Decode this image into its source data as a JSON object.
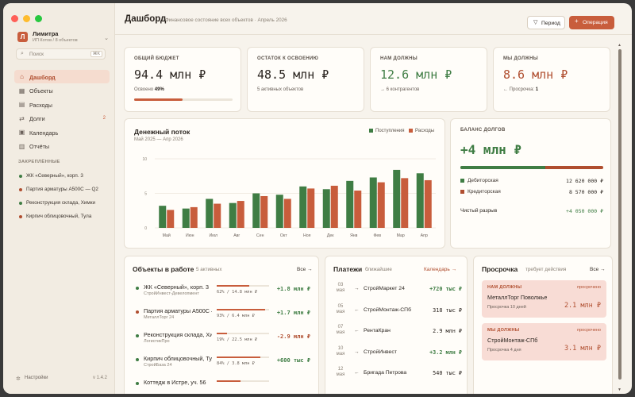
{
  "sidebar": {
    "org_logo": "Л",
    "org_name": "Лимитра",
    "org_sub": "ИП Котов / 8 объектов",
    "search_placeholder": "Поиск",
    "search_kbd": "⌘K",
    "nav": [
      {
        "label": "Дашборд",
        "icon": "⌂",
        "icon_name": "home-icon",
        "active": true
      },
      {
        "label": "Объекты",
        "icon": "▦",
        "icon_name": "building-icon"
      },
      {
        "label": "Расходы",
        "icon": "▤",
        "icon_name": "receipt-icon"
      },
      {
        "label": "Долги",
        "icon": "⇄",
        "icon_name": "debt-icon",
        "count": "2"
      },
      {
        "label": "Календарь",
        "icon": "▣",
        "icon_name": "calendar-icon"
      },
      {
        "label": "Отчёты",
        "icon": "▥",
        "icon_name": "chart-icon"
      }
    ],
    "pinned_title": "ЗАКРЕПЛЁННЫЕ",
    "pinned": [
      {
        "label": "ЖК «Северный», корп. 3",
        "color": "#3f7d44"
      },
      {
        "label": "Партия арматуры А500С — Q2",
        "color": "#b04e2f"
      },
      {
        "label": "Реконструкция склада, Химки",
        "color": "#3f7d44"
      },
      {
        "label": "Кирпич облицовочный, Тула",
        "color": "#b04e2f"
      }
    ],
    "settings_label": "Настройки",
    "version": "v 1.4.2"
  },
  "header": {
    "title": "Дашборд",
    "subtitle": "Финансовое состояние всех объектов · Апрель 2026",
    "period_label": "Период",
    "operation_label": "Операция"
  },
  "kpis": [
    {
      "label": "ОБЩИЙ БЮДЖЕТ",
      "value": "94.4 млн ₽",
      "sub_prefix": "Освоено ",
      "sub_value": "49%",
      "progress": 0.49,
      "color": "#2b2520"
    },
    {
      "label": "ОСТАТОК К ОСВОЕНИЮ",
      "value": "48.5 млн ₽",
      "sub": "5 активных объектов",
      "color": "#2b2520"
    },
    {
      "label": "НАМ ДОЛЖНЫ",
      "value": "12.6 млн ₽",
      "sub": "→ 6 контрагентов",
      "color": "#3f7d44"
    },
    {
      "label": "МЫ ДОЛЖНЫ",
      "value": "8.6 млн ₽",
      "sub_prefix": "← Просрочка: ",
      "sub_value": "1",
      "color": "#b04e2f"
    }
  ],
  "cashflow": {
    "title": "Денежный поток",
    "subtitle": "Май 2025 — Апр 2026",
    "legend_in": "Поступления",
    "legend_out": "Расходы"
  },
  "chart_data": {
    "type": "bar",
    "title": "Денежный поток",
    "categories": [
      "Май",
      "Июн",
      "Июл",
      "Авг",
      "Сен",
      "Окт",
      "Ноя",
      "Дек",
      "Янв",
      "Фев",
      "Мар",
      "Апр"
    ],
    "series": [
      {
        "name": "Поступления",
        "color": "#3f7d44",
        "values": [
          3.2,
          2.8,
          4.2,
          3.6,
          5.0,
          4.8,
          6.0,
          5.6,
          6.8,
          7.3,
          8.4,
          7.9
        ]
      },
      {
        "name": "Расходы",
        "color": "#c85d3c",
        "values": [
          2.6,
          3.0,
          3.5,
          3.9,
          4.6,
          4.2,
          5.7,
          6.1,
          5.4,
          6.6,
          7.2,
          6.9
        ]
      }
    ],
    "yticks": [
      "0",
      "5",
      "10"
    ],
    "ylim": [
      0,
      10
    ],
    "grid": true,
    "legend": "top-right"
  },
  "balance": {
    "label": "БАЛАНС ДОЛГОВ",
    "value": "+4 млн ₽",
    "receivable_share": 0.595,
    "rows": [
      {
        "label": "Дебиторская",
        "value": "12 620 000 ₽",
        "color": "#3f7d44"
      },
      {
        "label": "Кредиторская",
        "value": "8 570 000 ₽",
        "color": "#b04e2f"
      }
    ],
    "net_label": "Чистый разрыв",
    "net_value": "+4 050 000 ₽"
  },
  "objects": {
    "title": "Объекты в работе",
    "sub": "5 активных",
    "link": "Все →",
    "items": [
      {
        "name": "ЖК «Северный», корп. 3",
        "client": "СтройИнвест-Девелопмент",
        "progress": "62% / 14.8 млн ₽",
        "pct": 0.62,
        "delta": "+1.8 млн ₽",
        "dot": "#3f7d44",
        "dcolor": "#3f7d44"
      },
      {
        "name": "Партия арматуры А500С — Q2",
        "client": "МеталлТорг 24",
        "progress": "93% / 6.4 млн ₽",
        "pct": 0.93,
        "delta": "+1.7 млн ₽",
        "dot": "#b04e2f",
        "dcolor": "#3f7d44"
      },
      {
        "name": "Реконструкция склада, Химки",
        "client": "ЛогистикПро",
        "progress": "19% / 22.5 млн ₽",
        "pct": 0.19,
        "delta": "-2.9 млн ₽",
        "dot": "#3f7d44",
        "dcolor": "#b04e2f"
      },
      {
        "name": "Кирпич облицовочный, Тула",
        "client": "СтройБаза 24",
        "progress": "84% / 3.8 млн ₽",
        "pct": 0.84,
        "delta": "+600 тыс ₽",
        "dot": "#3f7d44",
        "dcolor": "#3f7d44"
      },
      {
        "name": "Коттедж в Истре, уч. 56",
        "client": "",
        "progress": "",
        "pct": 0.45,
        "delta": "",
        "dot": "#3f7d44",
        "dcolor": "#3f7d44"
      }
    ]
  },
  "payments": {
    "title": "Платежи",
    "sub": "ближайшие",
    "link": "Календарь →",
    "items": [
      {
        "day": "03",
        "month": "мая",
        "arrow": "→",
        "name": "СтройМаркет 24",
        "value": "+720 тыс ₽",
        "color": "#3f7d44"
      },
      {
        "day": "05",
        "month": "мая",
        "arrow": "←",
        "name": "СтройМонтаж-СПб",
        "value": "318 тыс ₽",
        "color": "#2b2520"
      },
      {
        "day": "07",
        "month": "мая",
        "arrow": "←",
        "name": "РентаКран",
        "value": "2.9 млн ₽",
        "color": "#2b2520"
      },
      {
        "day": "10",
        "month": "мая",
        "arrow": "→",
        "name": "СтройИнвест",
        "value": "+3.2 млн ₽",
        "color": "#3f7d44"
      },
      {
        "day": "12",
        "month": "мая",
        "arrow": "←",
        "name": "Бригада Петрова",
        "value": "540 тыс ₽",
        "color": "#2b2520"
      }
    ]
  },
  "overdue": {
    "title": "Просрочка",
    "sub": "требует действия",
    "link": "Все →",
    "items": [
      {
        "type": "НАМ ДОЛЖНЫ",
        "status": "просрочено",
        "name": "МеталлТорг Поволжье",
        "days": "Просрочка 10 дней",
        "value": "2.1 млн ₽"
      },
      {
        "type": "МЫ ДОЛЖНЫ",
        "status": "просрочено",
        "name": "СтройМонтаж-СПб",
        "days": "Просрочка 4 дня",
        "value": "3.1 млн ₽"
      }
    ]
  }
}
